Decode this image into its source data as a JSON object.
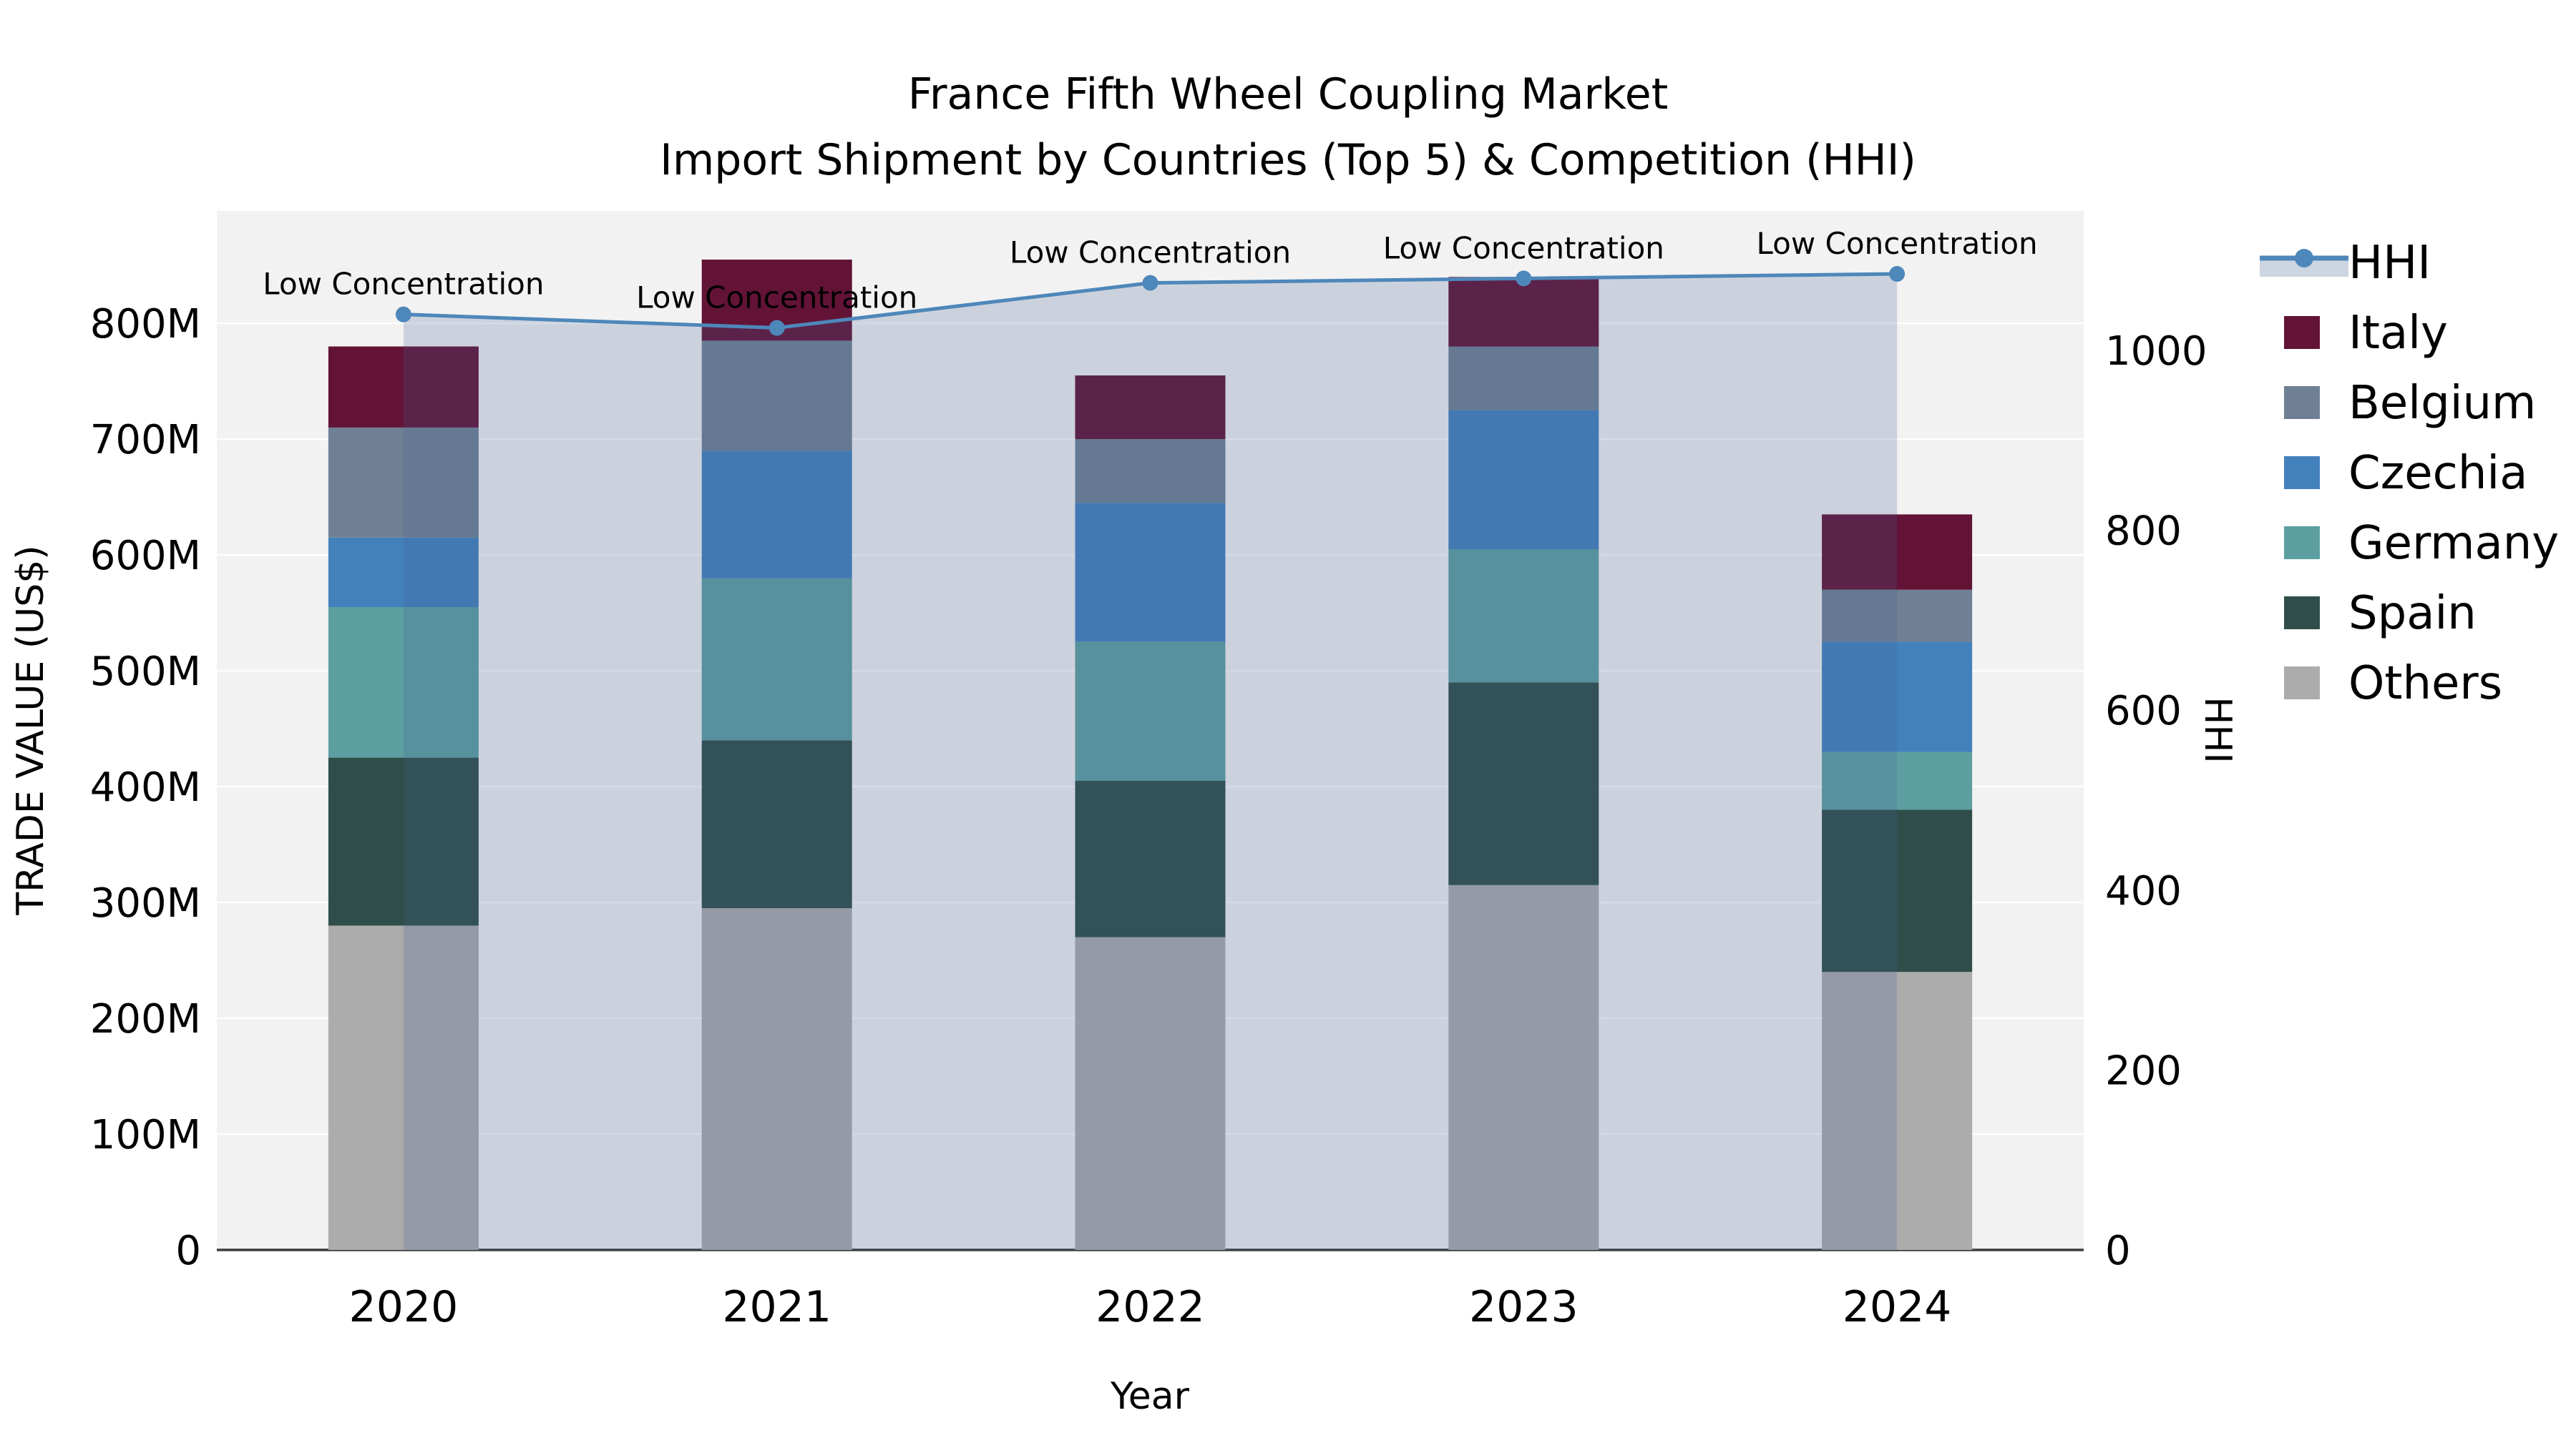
{
  "title": {
    "line1": "France Fifth Wheel Coupling Market",
    "line2": "Import Shipment by Countries (Top 5) & Competition (HHI)"
  },
  "axes": {
    "x_label": "Year",
    "y_left_label": "TRADE VALUE (US$)",
    "y_right_label": "HHI",
    "y_left_ticks": [
      {
        "label": "0",
        "value": 0
      },
      {
        "label": "100M",
        "value": 100
      },
      {
        "label": "200M",
        "value": 200
      },
      {
        "label": "300M",
        "value": 300
      },
      {
        "label": "400M",
        "value": 400
      },
      {
        "label": "500M",
        "value": 500
      },
      {
        "label": "600M",
        "value": 600
      },
      {
        "label": "700M",
        "value": 700
      },
      {
        "label": "800M",
        "value": 800
      }
    ],
    "y_right_ticks": [
      {
        "label": "0",
        "value": 0
      },
      {
        "label": "200",
        "value": 200
      },
      {
        "label": "400",
        "value": 400
      },
      {
        "label": "600",
        "value": 600
      },
      {
        "label": "800",
        "value": 800
      },
      {
        "label": "1000",
        "value": 1000
      }
    ]
  },
  "legend": {
    "items": [
      {
        "label": "HHI",
        "type": "line"
      },
      {
        "label": "Italy",
        "type": "swatch",
        "color_key": "Italy"
      },
      {
        "label": "Belgium",
        "type": "swatch",
        "color_key": "Belgium"
      },
      {
        "label": "Czechia",
        "type": "swatch",
        "color_key": "Czechia"
      },
      {
        "label": "Germany",
        "type": "swatch",
        "color_key": "Germany"
      },
      {
        "label": "Spain",
        "type": "swatch",
        "color_key": "Spain"
      },
      {
        "label": "Others",
        "type": "swatch",
        "color_key": "Others"
      }
    ]
  },
  "colors": {
    "Italy": "#621336",
    "Belgium": "#6f8094",
    "Czechia": "#4381bd",
    "Germany": "#5d9fa0",
    "Spain": "#2f4e4a",
    "Others": "#acacac",
    "hhi_line": "#4e87ba",
    "band_fill": "rgba(69,96,146,0.22)",
    "legend_band_patch": "#cdd5e0",
    "plot_bg": "#f2f2f2",
    "gridline": "rgba(255,255,255,0.9)",
    "axis_line": "#3c3c3c"
  },
  "chart_data": {
    "type": "bar",
    "subtype": "stacked-bars-with-line",
    "categories": [
      "2020",
      "2021",
      "2022",
      "2023",
      "2024"
    ],
    "value_unit_left": "Trade value, US$ millions",
    "series": [
      {
        "name": "Others",
        "stack_order": 1,
        "values": [
          280,
          295,
          270,
          315,
          240
        ]
      },
      {
        "name": "Spain",
        "stack_order": 2,
        "values": [
          145,
          145,
          135,
          175,
          140
        ]
      },
      {
        "name": "Germany",
        "stack_order": 3,
        "values": [
          130,
          140,
          120,
          115,
          50
        ]
      },
      {
        "name": "Czechia",
        "stack_order": 4,
        "values": [
          60,
          110,
          120,
          120,
          95
        ]
      },
      {
        "name": "Belgium",
        "stack_order": 5,
        "values": [
          95,
          95,
          55,
          55,
          45
        ]
      },
      {
        "name": "Italy",
        "stack_order": 6,
        "values": [
          70,
          70,
          55,
          60,
          65
        ]
      }
    ],
    "bar_totals": [
      780,
      855,
      755,
      840,
      635
    ],
    "line_series": {
      "name": "HHI",
      "axis": "right",
      "values": [
        1040,
        1025,
        1075,
        1080,
        1085
      ],
      "has_area_band": true
    },
    "point_annotations": [
      "Low Concentration",
      "Low Concentration",
      "Low Concentration",
      "Low Concentration",
      "Low Concentration"
    ],
    "title": "France Fifth Wheel Coupling Market",
    "subtitle": "Import Shipment by Countries (Top 5) & Competition (HHI)",
    "xlabel": "Year",
    "ylabel_left": "TRADE VALUE (US$)",
    "ylabel_right": "HHI",
    "ylim_left": [
      0,
      897
    ],
    "ylim_right": [
      0,
      1155
    ],
    "grid": "horizontal-white-on-gray",
    "legend_position": "right-outside"
  }
}
